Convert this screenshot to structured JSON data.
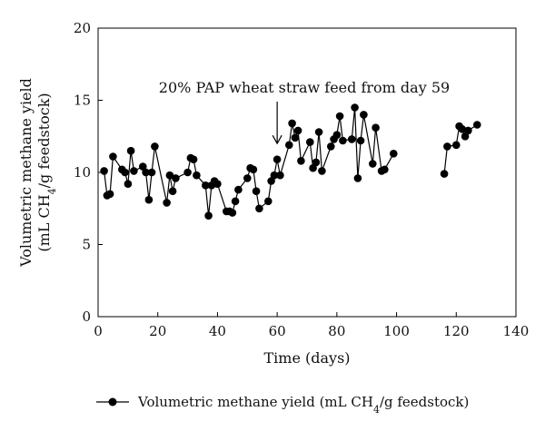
{
  "chart_data": {
    "type": "line",
    "xlabel": "Time (days)",
    "ylabel_line1": "Volumetric methane yield",
    "ylabel_line2": "(mL CH",
    "ylabel_sub": "4",
    "ylabel_line2_end": "/g feedstock)",
    "xlim": [
      0,
      140
    ],
    "ylim": [
      0,
      20
    ],
    "xticks": [
      0,
      20,
      40,
      60,
      80,
      100,
      120,
      140
    ],
    "yticks": [
      0,
      5,
      10,
      15,
      20
    ],
    "grid": false,
    "legend_position": "bottom",
    "annotation": {
      "text": "20% PAP wheat straw feed from day 59",
      "arrow_x": 60,
      "arrow_from_y": 14.9,
      "arrow_to_y": 12.0
    },
    "series": [
      {
        "name": "Volumetric methane yield (mL CH4/g feedstock)",
        "legend_prefix": "Volumetric methane yield (mL CH",
        "legend_sub": "4",
        "legend_suffix": "/g feedstock)",
        "color": "#000000",
        "segments": [
          [
            [
              2,
              10.1
            ],
            [
              3,
              8.4
            ],
            [
              4,
              8.5
            ],
            [
              5,
              11.1
            ],
            [
              8,
              10.2
            ],
            [
              9,
              10.0
            ],
            [
              10,
              9.2
            ],
            [
              11,
              11.5
            ],
            [
              12,
              10.1
            ],
            [
              15,
              10.4
            ],
            [
              16,
              10.0
            ],
            [
              17,
              8.1
            ],
            [
              18,
              10.0
            ],
            [
              19,
              11.8
            ],
            [
              23,
              7.9
            ],
            [
              24,
              9.8
            ],
            [
              25,
              8.7
            ],
            [
              26,
              9.6
            ],
            [
              30,
              10.0
            ],
            [
              31,
              11.0
            ],
            [
              32,
              10.9
            ],
            [
              33,
              9.8
            ],
            [
              36,
              9.1
            ],
            [
              37,
              7.0
            ],
            [
              38,
              9.1
            ],
            [
              39,
              9.4
            ],
            [
              40,
              9.2
            ],
            [
              43,
              7.3
            ],
            [
              44,
              7.3
            ],
            [
              45,
              7.2
            ],
            [
              46,
              8.0
            ],
            [
              47,
              8.8
            ],
            [
              50,
              9.6
            ],
            [
              51,
              10.3
            ],
            [
              52,
              10.2
            ],
            [
              53,
              8.7
            ],
            [
              54,
              7.5
            ],
            [
              57,
              8.0
            ],
            [
              58,
              9.4
            ],
            [
              59,
              9.8
            ],
            [
              60,
              10.9
            ],
            [
              61,
              9.8
            ],
            [
              64,
              11.9
            ],
            [
              65,
              13.4
            ],
            [
              66,
              12.4
            ],
            [
              67,
              12.9
            ],
            [
              68,
              10.8
            ],
            [
              71,
              12.1
            ],
            [
              72,
              10.3
            ],
            [
              73,
              10.7
            ],
            [
              74,
              12.8
            ],
            [
              75,
              10.1
            ],
            [
              78,
              11.8
            ],
            [
              79,
              12.3
            ],
            [
              80,
              12.6
            ],
            [
              81,
              13.9
            ],
            [
              82,
              12.2
            ],
            [
              85,
              12.3
            ],
            [
              86,
              14.5
            ],
            [
              87,
              9.6
            ],
            [
              88,
              12.2
            ],
            [
              89,
              14.0
            ],
            [
              92,
              10.6
            ],
            [
              93,
              13.1
            ],
            [
              95,
              10.1
            ],
            [
              96,
              10.2
            ],
            [
              99,
              11.3
            ]
          ],
          [
            [
              116,
              9.9
            ],
            [
              117,
              11.8
            ],
            [
              120,
              11.9
            ],
            [
              121,
              13.2
            ],
            [
              122,
              13.0
            ],
            [
              123,
              12.5
            ],
            [
              124,
              12.9
            ],
            [
              127,
              13.3
            ]
          ]
        ]
      }
    ]
  }
}
